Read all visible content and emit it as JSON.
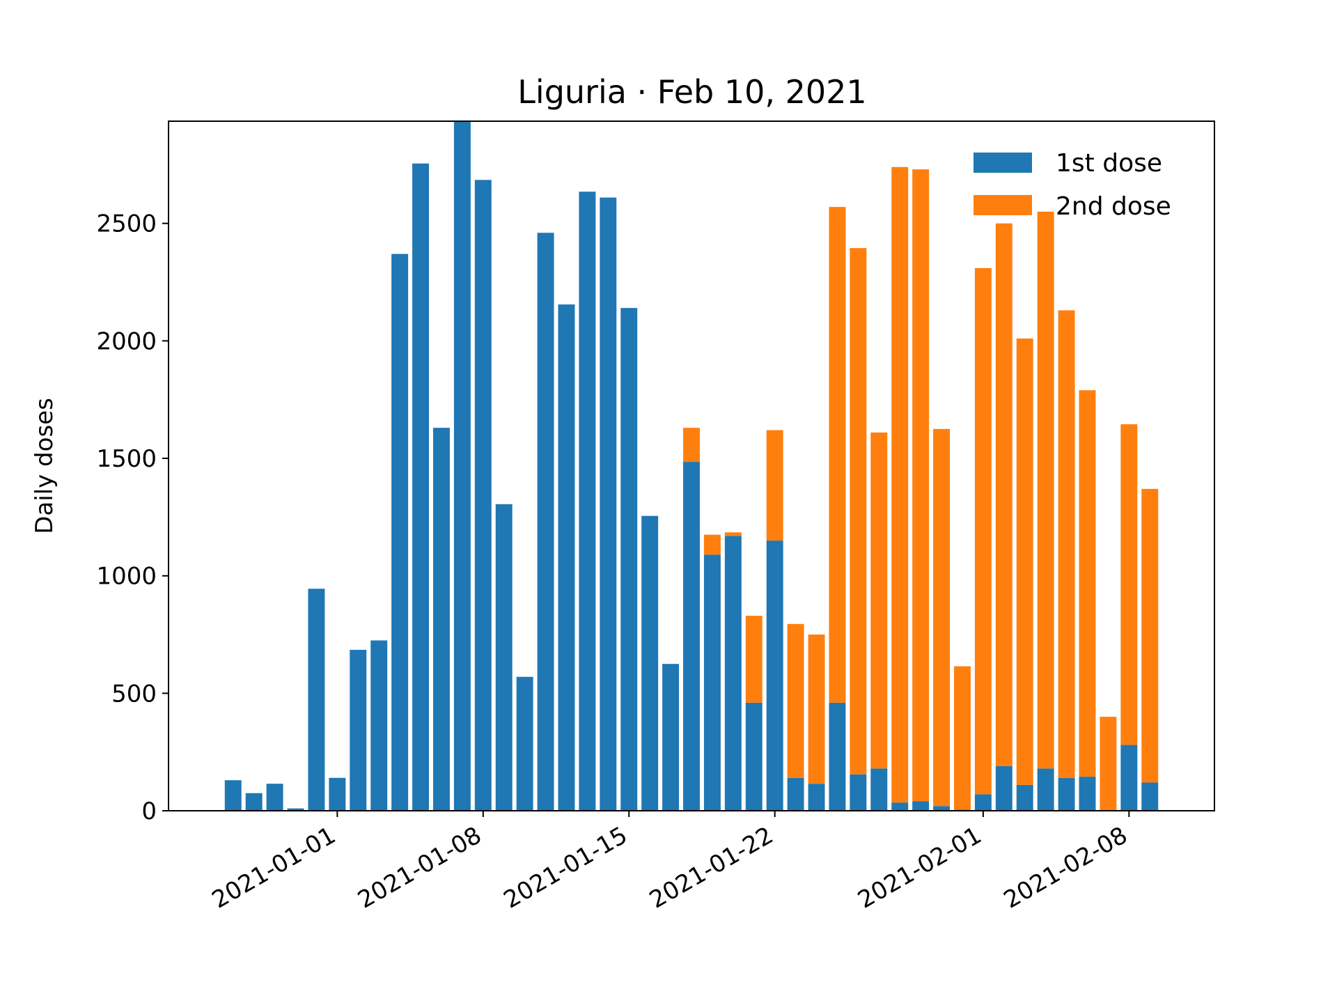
{
  "chart_data": {
    "type": "bar",
    "stacked": true,
    "title": "Liguria · Feb 10, 2021",
    "xlabel": "",
    "ylabel": "Daily doses",
    "x": [
      "2020-12-27",
      "2020-12-28",
      "2020-12-29",
      "2020-12-30",
      "2020-12-31",
      "2021-01-01",
      "2021-01-02",
      "2021-01-03",
      "2021-01-04",
      "2021-01-05",
      "2021-01-06",
      "2021-01-07",
      "2021-01-08",
      "2021-01-09",
      "2021-01-10",
      "2021-01-11",
      "2021-01-12",
      "2021-01-13",
      "2021-01-14",
      "2021-01-15",
      "2021-01-16",
      "2021-01-17",
      "2021-01-18",
      "2021-01-19",
      "2021-01-20",
      "2021-01-21",
      "2021-01-22",
      "2021-01-23",
      "2021-01-24",
      "2021-01-25",
      "2021-01-26",
      "2021-01-27",
      "2021-01-28",
      "2021-01-29",
      "2021-01-30",
      "2021-01-31",
      "2021-02-01",
      "2021-02-02",
      "2021-02-03",
      "2021-02-04",
      "2021-02-05",
      "2021-02-06",
      "2021-02-07",
      "2021-02-08",
      "2021-02-09"
    ],
    "series": [
      {
        "name": "1st dose",
        "color": "#1f77b4",
        "values": [
          130,
          75,
          115,
          10,
          945,
          140,
          685,
          725,
          2370,
          2755,
          1630,
          2935,
          2685,
          1305,
          570,
          2460,
          2155,
          2635,
          2610,
          2140,
          1255,
          625,
          1485,
          1090,
          1170,
          460,
          1150,
          140,
          115,
          460,
          155,
          180,
          35,
          40,
          20,
          5,
          70,
          190,
          110,
          180,
          140,
          145,
          0,
          280,
          120
        ]
      },
      {
        "name": "2nd dose",
        "color": "#ff7f0e",
        "values": [
          0,
          0,
          0,
          0,
          0,
          0,
          0,
          0,
          0,
          0,
          0,
          0,
          0,
          0,
          0,
          0,
          0,
          0,
          0,
          0,
          0,
          0,
          145,
          85,
          15,
          370,
          470,
          655,
          635,
          2110,
          2240,
          1430,
          2705,
          2690,
          1605,
          610,
          2240,
          2310,
          1900,
          2370,
          1990,
          1645,
          400,
          1365,
          1250
        ]
      }
    ],
    "xticks": [
      "2021-01-01",
      "2021-01-08",
      "2021-01-15",
      "2021-01-22",
      "2021-02-01",
      "2021-02-08"
    ],
    "yticks": [
      0,
      500,
      1000,
      1500,
      2000,
      2500
    ],
    "ylim": [
      0,
      2935
    ],
    "grid": false,
    "legend_position": "top-right"
  }
}
